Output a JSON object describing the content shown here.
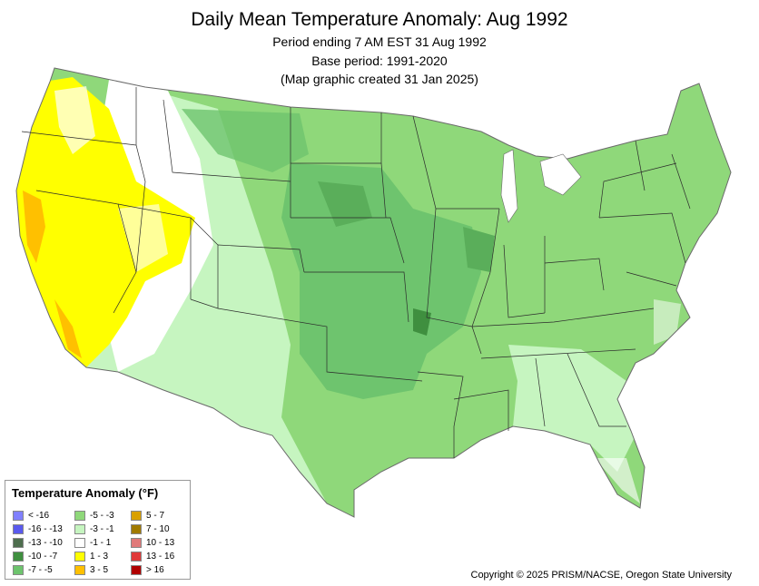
{
  "header": {
    "title": "Daily Mean Temperature Anomaly: Aug 1992",
    "line1": "Period ending 7 AM EST 31 Aug 1992",
    "line2": "Base period: 1991-2020",
    "line3": "(Map graphic created 31 Jan 2025)"
  },
  "legend": {
    "title": "Temperature Anomaly (°F)",
    "items": [
      {
        "label": "< -16",
        "color": "#8080ff"
      },
      {
        "label": "-16 - -13",
        "color": "#5a5aee"
      },
      {
        "label": "-13 - -10",
        "color": "#4e6e4e"
      },
      {
        "label": "-10 - -7",
        "color": "#3f8f3f"
      },
      {
        "label": "-7 - -5",
        "color": "#6ec46e"
      },
      {
        "label": "-5 - -3",
        "color": "#8fd87a"
      },
      {
        "label": "-3 - -1",
        "color": "#c6f5c0"
      },
      {
        "label": "-1 - 1",
        "color": "#ffffff"
      },
      {
        "label": "1 - 3",
        "color": "#ffff00"
      },
      {
        "label": "3 - 5",
        "color": "#ffc000"
      },
      {
        "label": "5 - 7",
        "color": "#d9a000"
      },
      {
        "label": "7 - 10",
        "color": "#a07a00"
      },
      {
        "label": "10 - 13",
        "color": "#e07a7a"
      },
      {
        "label": "13 - 16",
        "color": "#e03a3a"
      },
      {
        "label": "> 16",
        "color": "#b00000"
      }
    ]
  },
  "map_colors": {
    "outline": "#6a6a6a",
    "state_border": "#2b2b2b"
  },
  "copyright": "Copyright © 2025 PRISM/NACSE, Oregon State University"
}
